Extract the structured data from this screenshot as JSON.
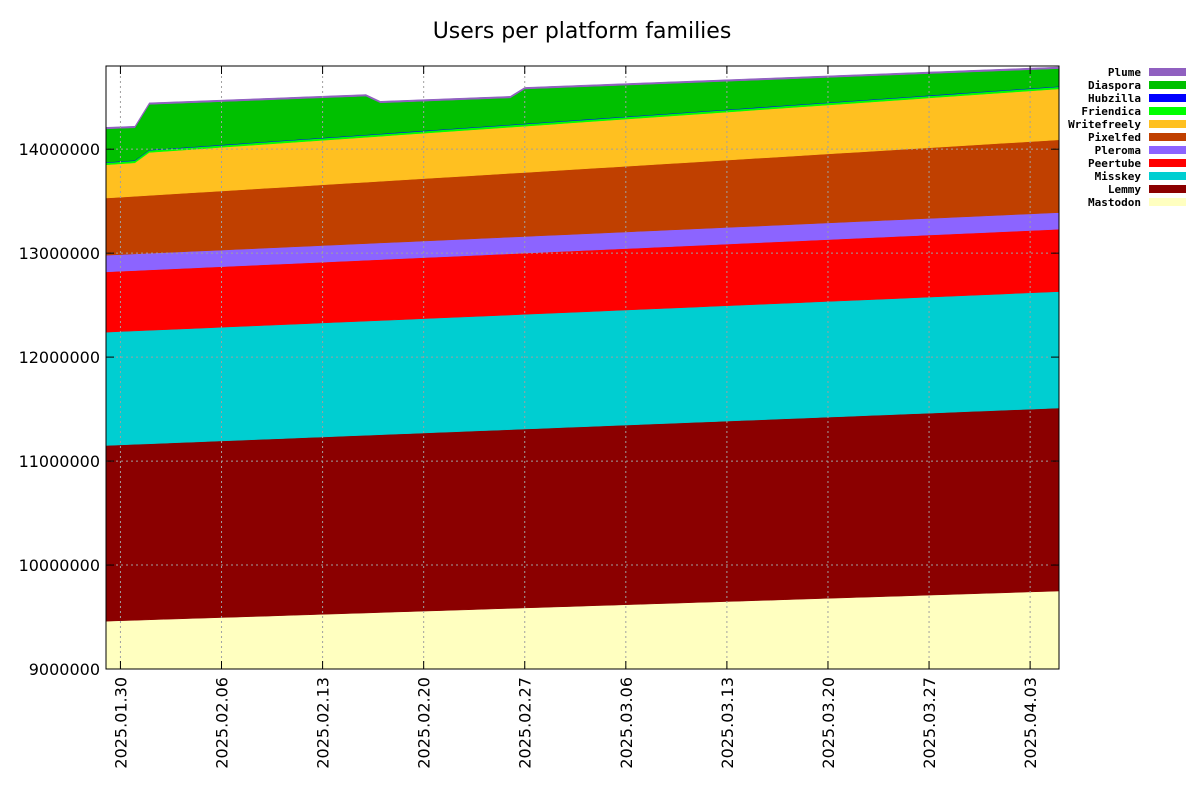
{
  "chart_data": {
    "type": "area",
    "stacked": true,
    "title": "Users per platform families",
    "xlabel": "",
    "ylabel": "",
    "x_tick_labels": [
      "2025.01.30",
      "2025.02.06",
      "2025.02.13",
      "2025.02.20",
      "2025.02.27",
      "2025.03.06",
      "2025.03.13",
      "2025.03.20",
      "2025.03.27",
      "2025.04.03"
    ],
    "x_tick_days": [
      0,
      7,
      14,
      21,
      28,
      35,
      42,
      49,
      56,
      63
    ],
    "x_range_days": [
      -1,
      65
    ],
    "y_ticks": [
      9000000,
      10000000,
      11000000,
      12000000,
      13000000,
      14000000
    ],
    "y_tick_labels": [
      "9000000",
      "10000000",
      "11000000",
      "12000000",
      "13000000",
      "14000000"
    ],
    "ylim": [
      9000000,
      14800000
    ],
    "grid": true,
    "legend_position": "right",
    "series_start_day": -1,
    "series_end_day": 65,
    "series": [
      {
        "name": "Mastodon",
        "color": "#ffffc0",
        "start": 9460000,
        "end": 9750000,
        "breaks": []
      },
      {
        "name": "Lemmy",
        "color": "#8b0000",
        "start": 1690000,
        "end": 1760000,
        "breaks": []
      },
      {
        "name": "Misskey",
        "color": "#00ced1",
        "start": 1090000,
        "end": 1120000,
        "breaks": []
      },
      {
        "name": "Peertube",
        "color": "#ff0000",
        "start": 580000,
        "end": 600000,
        "breaks": []
      },
      {
        "name": "Pleroma",
        "color": "#8c64ff",
        "start": 160000,
        "end": 160000,
        "breaks": []
      },
      {
        "name": "Pixelfed",
        "color": "#c04000",
        "start": 550000,
        "end": 700000,
        "breaks": []
      },
      {
        "name": "Writefreely",
        "color": "#ffc020",
        "start": 320000,
        "end": 490000,
        "breaks": [
          [
            2,
            90000
          ]
        ]
      },
      {
        "name": "Friendica",
        "color": "#00ff00",
        "start": 20000,
        "end": 20000,
        "breaks": []
      },
      {
        "name": "Hubzilla",
        "color": "#0000ff",
        "start": 5000,
        "end": 5000,
        "breaks": []
      },
      {
        "name": "Diaspora",
        "color": "#00c000",
        "start": 320000,
        "end": 170000,
        "breaks": [
          [
            2,
            130000
          ],
          [
            18,
            -70000
          ],
          [
            28,
            80000
          ]
        ]
      },
      {
        "name": "Plume",
        "color": "#9060c0",
        "start": 15000,
        "end": 15000,
        "breaks": []
      }
    ],
    "legend_order": [
      "Plume",
      "Diaspora",
      "Hubzilla",
      "Friendica",
      "Writefreely",
      "Pixelfed",
      "Pleroma",
      "Peertube",
      "Misskey",
      "Lemmy",
      "Mastodon"
    ]
  }
}
